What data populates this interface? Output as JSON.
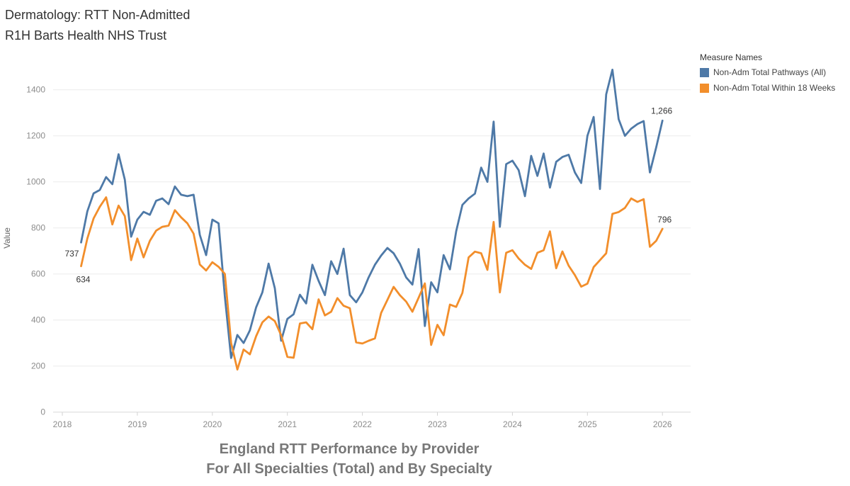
{
  "title": {
    "line1": "Dermatology: RTT Non-Admitted",
    "line2": "R1H Barts Health NHS Trust"
  },
  "caption": {
    "line1": "England RTT Performance by Provider",
    "line2": "For All Specialties (Total) and By Specialty"
  },
  "legend": {
    "title": "Measure Names",
    "items": [
      {
        "label": "Non-Adm Total Pathways (All)",
        "color": "#4e79a7"
      },
      {
        "label": "Non-Adm Total Within 18 Weeks",
        "color": "#f28e2b"
      }
    ]
  },
  "chart_data": {
    "type": "line",
    "title": "",
    "xlabel": "",
    "ylabel": "Value",
    "grid": "horizontal",
    "legend_position": "top-right",
    "x_axis": {
      "tick_years": [
        2018,
        2019,
        2020,
        2021,
        2022,
        2023,
        2024,
        2025,
        2026
      ],
      "start_year_fraction": 2018.25,
      "months_per_point": 1
    },
    "y_axis": {
      "ticks": [
        0,
        200,
        400,
        600,
        800,
        1000,
        1200,
        1400
      ],
      "ylim": [
        0,
        1513
      ]
    },
    "series": [
      {
        "name": "Non-Adm Total Pathways (All)",
        "color": "#4e79a7",
        "first_label": "737",
        "last_label": "1,266",
        "values": [
          737,
          872,
          950,
          965,
          1021,
          990,
          1120,
          1010,
          762,
          836,
          870,
          857,
          918,
          928,
          903,
          980,
          944,
          938,
          944,
          770,
          682,
          836,
          820,
          500,
          235,
          335,
          300,
          355,
          455,
          520,
          645,
          538,
          310,
          405,
          425,
          510,
          472,
          640,
          570,
          508,
          655,
          600,
          710,
          508,
          477,
          520,
          585,
          640,
          680,
          713,
          690,
          645,
          585,
          554,
          708,
          374,
          564,
          520,
          682,
          620,
          785,
          900,
          928,
          949,
          1062,
          1000,
          1262,
          805,
          1077,
          1092,
          1051,
          938,
          1113,
          1026,
          1123,
          975,
          1087,
          1108,
          1118,
          1041,
          995,
          1200,
          1282,
          969,
          1380,
          1487,
          1272,
          1200,
          1231,
          1251,
          1264,
          1041,
          1150,
          1266
        ]
      },
      {
        "name": "Non-Adm Total Within 18 Weeks",
        "color": "#f28e2b",
        "first_label": "634",
        "last_label": "796",
        "values": [
          634,
          754,
          841,
          892,
          933,
          815,
          897,
          851,
          660,
          754,
          672,
          744,
          788,
          805,
          810,
          877,
          846,
          820,
          775,
          641,
          615,
          651,
          631,
          600,
          300,
          185,
          272,
          251,
          330,
          390,
          415,
          395,
          334,
          240,
          236,
          385,
          390,
          360,
          490,
          420,
          436,
          495,
          462,
          451,
          303,
          298,
          310,
          320,
          431,
          487,
          544,
          508,
          480,
          436,
          497,
          559,
          292,
          379,
          334,
          467,
          457,
          518,
          672,
          697,
          690,
          618,
          826,
          520,
          692,
          703,
          667,
          640,
          622,
          692,
          703,
          785,
          625,
          698,
          636,
          595,
          545,
          558,
          630,
          660,
          690,
          861,
          869,
          887,
          928,
          913,
          925,
          718,
          744,
          796
        ]
      }
    ]
  },
  "colors": {
    "gridline": "#ececec",
    "zero_line": "#d9d9d9",
    "tick_mark": "#d2d2d2",
    "axis_text": "#8c8c8c",
    "point_label": "#333333"
  }
}
